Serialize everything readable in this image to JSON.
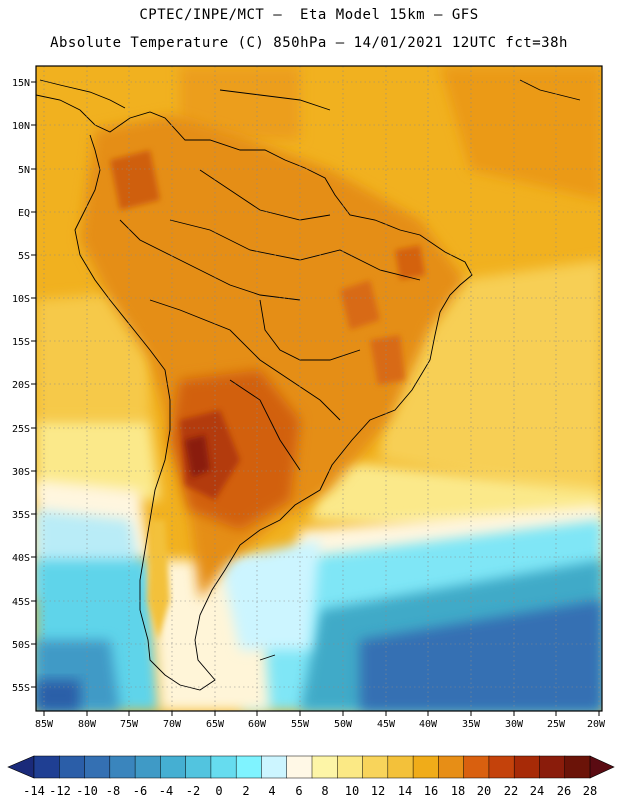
{
  "header": {
    "line1": "CPTEC/INPE/MCT –  Eta Model 15km – GFS",
    "line2": "Absolute Temperature (C) 850hPa – 14/01/2021 12UTC fct=38h"
  },
  "map": {
    "lat_labels": [
      "15N",
      "10N",
      "5N",
      "EQ",
      "5S",
      "10S",
      "15S",
      "20S",
      "25S",
      "30S",
      "35S",
      "40S",
      "45S",
      "50S",
      "55S"
    ],
    "lon_labels": [
      "85W",
      "80W",
      "75W",
      "70W",
      "65W",
      "60W",
      "55W",
      "50W",
      "45W",
      "40W",
      "35W",
      "30W",
      "25W",
      "20W"
    ]
  },
  "colorbar": {
    "labels": [
      "-14",
      "-12",
      "-10",
      "-8",
      "-6",
      "-4",
      "-2",
      "0",
      "2",
      "4",
      "6",
      "8",
      "10",
      "12",
      "14",
      "16",
      "18",
      "20",
      "22",
      "24",
      "26",
      "28"
    ],
    "colors": [
      "#1f3f93",
      "#2b5ea8",
      "#3470b3",
      "#3a85bd",
      "#3f9ac6",
      "#45afd2",
      "#52c4df",
      "#66dcef",
      "#7ff3ff",
      "#ccf5ff",
      "#fff8e6",
      "#fdf5a7",
      "#fbe985",
      "#f8d45b",
      "#f3c13a",
      "#f0ac19",
      "#e78e16",
      "#d9600f",
      "#c4420b",
      "#a72a07",
      "#8a1c0b",
      "#6b1308"
    ],
    "left_arrow_color": "#1a2a7a",
    "right_arrow_color": "#5a0b12"
  }
}
